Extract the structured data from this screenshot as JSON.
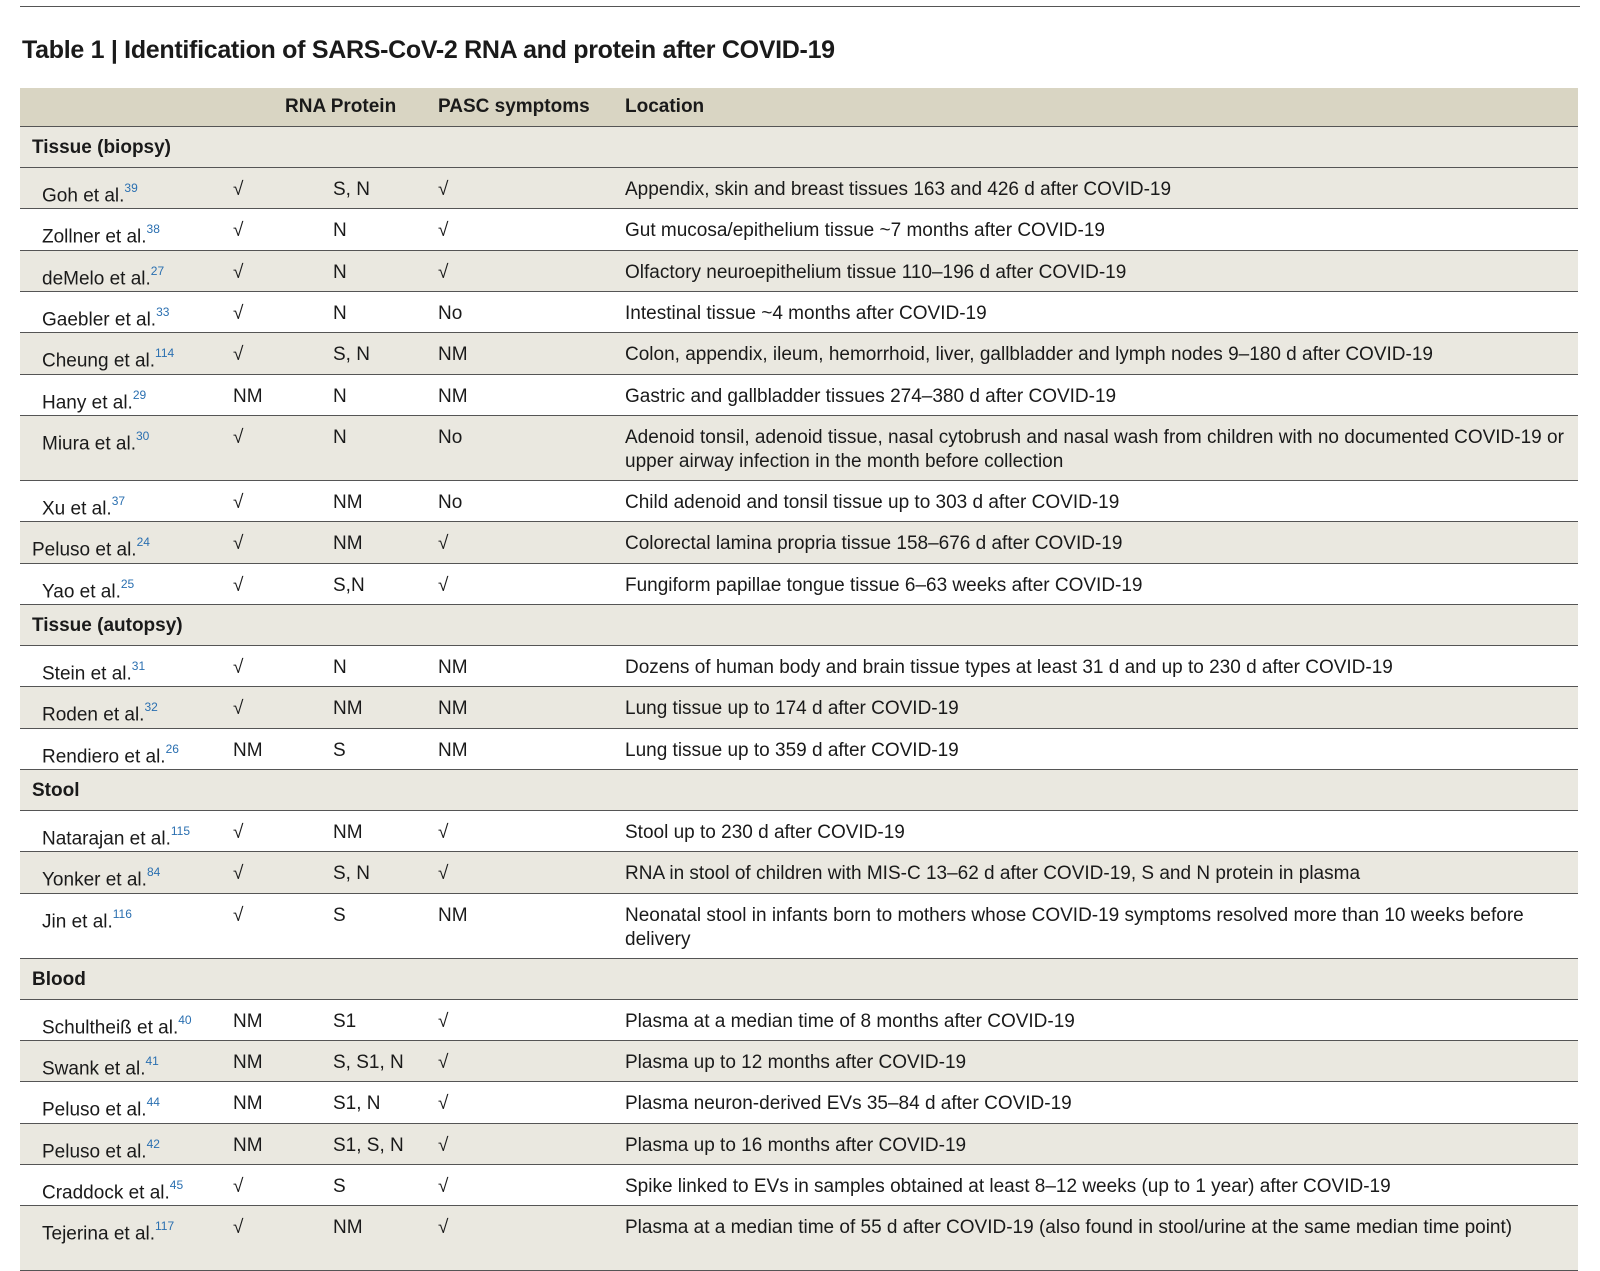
{
  "title": "Table 1 | Identification of SARS-CoV-2 RNA and protein after COVID-19",
  "columns": {
    "study": "",
    "rna_protein": "RNA Protein",
    "pasc": "PASC symptoms",
    "location": "Location"
  },
  "sections": [
    {
      "label": "Tissue (biopsy)"
    },
    {
      "label": "Tissue (autopsy)"
    },
    {
      "label": "Stool"
    },
    {
      "label": "Blood"
    }
  ],
  "rows": [
    {
      "study": "Goh et al.",
      "ref": "39",
      "rna": "√",
      "protein": "S, N",
      "pasc": "√",
      "location": "Appendix, skin and breast tissues 163 and 426 d after COVID-19"
    },
    {
      "study": "Zollner et al.",
      "ref": "38",
      "rna": "√",
      "protein": "N",
      "pasc": "√",
      "location": "Gut mucosa/epithelium tissue ~7 months after COVID-19"
    },
    {
      "study": "deMelo et al.",
      "ref": "27",
      "rna": "√",
      "protein": "N",
      "pasc": "√",
      "location": "Olfactory neuroepithelium tissue 110–196 d after COVID-19"
    },
    {
      "study": "Gaebler et al.",
      "ref": "33",
      "rna": "√",
      "protein": "N",
      "pasc": "No",
      "location": "Intestinal tissue ~4 months after COVID-19"
    },
    {
      "study": "Cheung et al.",
      "ref": "114",
      "rna": "√",
      "protein": "S, N",
      "pasc": "NM",
      "location": "Colon, appendix, ileum, hemorrhoid, liver, gallbladder and lymph nodes 9–180 d after COVID-19"
    },
    {
      "study": "Hany et al.",
      "ref": "29",
      "rna": "NM",
      "protein": "N",
      "pasc": "NM",
      "location": "Gastric and gallbladder tissues 274–380 d after COVID-19"
    },
    {
      "study": "Miura et al.",
      "ref": "30",
      "rna": "√",
      "protein": "N",
      "pasc": "No",
      "location": "Adenoid tonsil, adenoid tissue, nasal cytobrush and nasal wash from children with no documented COVID-19 or upper airway infection in the month before collection"
    },
    {
      "study": "Xu et al.",
      "ref": "37",
      "rna": "√",
      "protein": "NM",
      "pasc": "No",
      "location": "Child adenoid and tonsil tissue up to 303 d after COVID-19"
    },
    {
      "study": "Peluso et al.",
      "ref": "24",
      "rna": "√",
      "protein": "NM",
      "pasc": "√",
      "location": "Colorectal lamina propria tissue 158–676 d after COVID-19"
    },
    {
      "study": "Yao et al.",
      "ref": "25",
      "rna": "√",
      "protein": "S,N",
      "pasc": "√",
      "location": "Fungiform papillae tongue tissue 6–63 weeks after COVID-19"
    },
    {
      "study": "Stein et al.",
      "ref": "31",
      "rna": "√",
      "protein": "N",
      "pasc": "NM",
      "location": "Dozens of human body and brain tissue types at least 31 d and up to 230 d after COVID-19"
    },
    {
      "study": "Roden et al.",
      "ref": "32",
      "rna": "√",
      "protein": "NM",
      "pasc": "NM",
      "location": "Lung tissue up to 174 d after COVID-19"
    },
    {
      "study": "Rendiero et al.",
      "ref": "26",
      "rna": "NM",
      "protein": "S",
      "pasc": "NM",
      "location": "Lung tissue up to 359 d after COVID-19"
    },
    {
      "study": "Natarajan et al.",
      "ref": "115",
      "rna": "√",
      "protein": "NM",
      "pasc": "√",
      "location": "Stool up to 230 d after COVID-19"
    },
    {
      "study": "Yonker et al.",
      "ref": "84",
      "rna": "√",
      "protein": "S, N",
      "pasc": "√",
      "location": "RNA in stool of children with MIS-C 13–62 d after COVID-19, S and N protein in plasma"
    },
    {
      "study": "Jin et al.",
      "ref": "116",
      "rna": "√",
      "protein": "S",
      "pasc": "NM",
      "location": "Neonatal stool in infants born to mothers whose COVID-19 symptoms resolved more than 10 weeks before delivery"
    },
    {
      "study": "Schultheiß et al.",
      "ref": "40",
      "rna": "NM",
      "protein": "S1",
      "pasc": "√",
      "location": "Plasma at a median time of 8 months after COVID-19"
    },
    {
      "study": "Swank et al.",
      "ref": "41",
      "rna": "NM",
      "protein": "S, S1, N",
      "pasc": "√",
      "location": "Plasma up to 12 months after COVID-19"
    },
    {
      "study": "Peluso et al.",
      "ref": "44",
      "rna": "NM",
      "protein": "S1, N",
      "pasc": "√",
      "location": "Plasma neuron-derived EVs 35–84 d after COVID-19"
    },
    {
      "study": "Peluso et al.",
      "ref": "42",
      "rna": "NM",
      "protein": "S1, S, N",
      "pasc": "√",
      "location": "Plasma up to 16 months after COVID-19"
    },
    {
      "study": "Craddock et al.",
      "ref": "45",
      "rna": "√",
      "protein": "S",
      "pasc": "√",
      "location": "Spike linked to EVs in samples obtained at least 8–12 weeks (up to 1 year) after COVID-19"
    },
    {
      "study": "Tejerina et al.",
      "ref": "117",
      "rna": "√",
      "protein": "NM",
      "pasc": "√",
      "location": "Plasma at a median time of 55 d after COVID-19 (also found in stool/urine at the same median time point)"
    }
  ]
}
